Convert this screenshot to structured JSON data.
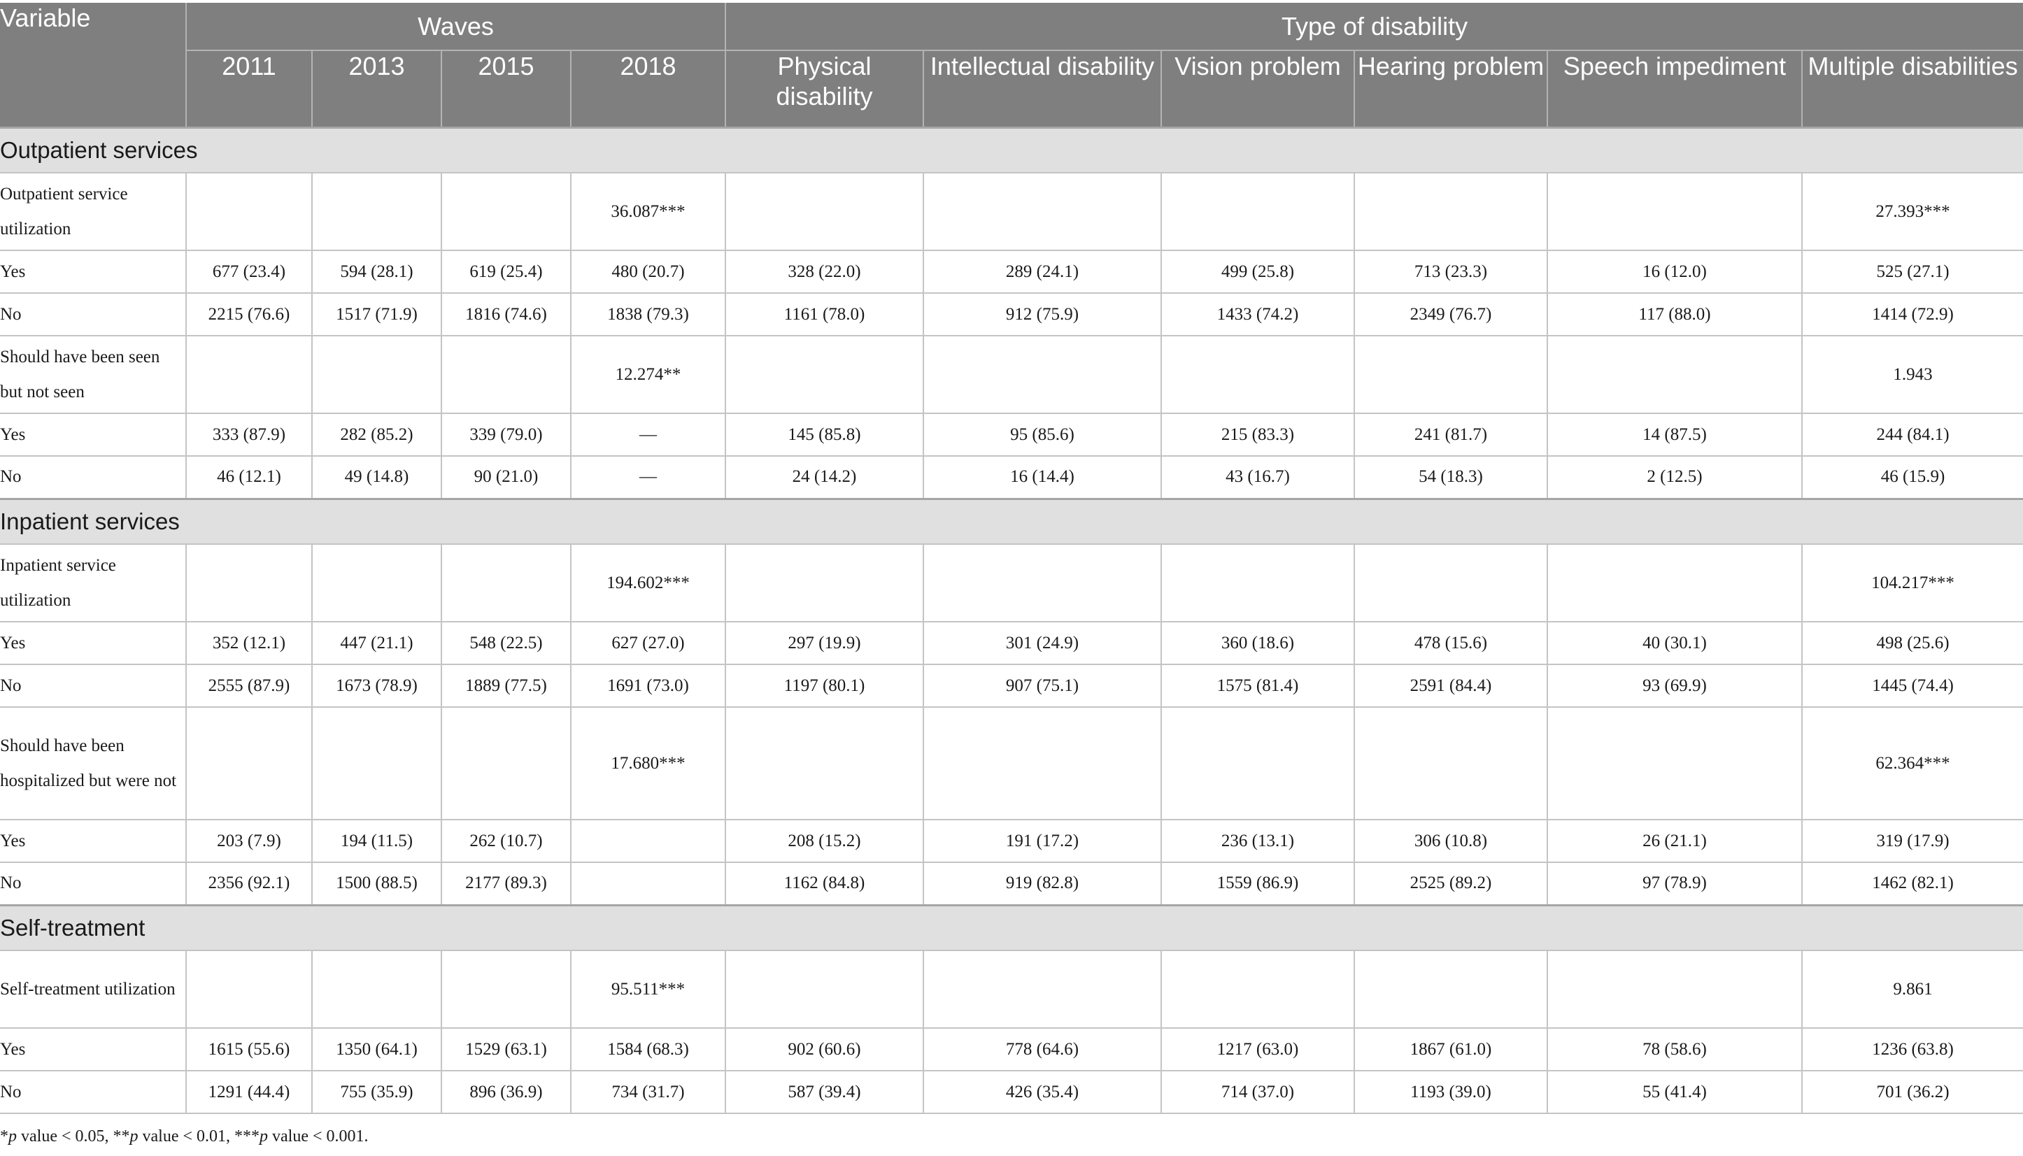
{
  "header": {
    "variable": "Variable",
    "group_waves": "Waves",
    "group_type": "Type of disability",
    "columns": [
      "2011",
      "2013",
      "2015",
      "2018",
      "Physical disability",
      "Intellectual disability",
      "Vision problem",
      "Hearing problem",
      "Speech impediment",
      "Multiple disabilities"
    ]
  },
  "sections": [
    {
      "title": "Outpatient services",
      "rows": [
        {
          "label": "Outpatient service utilization",
          "cells": [
            "",
            "",
            "",
            "36.087***",
            "",
            "",
            "",
            "",
            "",
            "27.393***"
          ]
        },
        {
          "label": "Yes",
          "cells": [
            "677 (23.4)",
            "594 (28.1)",
            "619 (25.4)",
            "480 (20.7)",
            "328 (22.0)",
            "289 (24.1)",
            "499 (25.8)",
            "713 (23.3)",
            "16 (12.0)",
            "525 (27.1)"
          ]
        },
        {
          "label": "No",
          "cells": [
            "2215 (76.6)",
            "1517 (71.9)",
            "1816 (74.6)",
            "1838 (79.3)",
            "1161 (78.0)",
            "912 (75.9)",
            "1433 (74.2)",
            "2349 (76.7)",
            "117 (88.0)",
            "1414 (72.9)"
          ]
        },
        {
          "label": "Should have been seen but not seen",
          "cells": [
            "",
            "",
            "",
            "12.274**",
            "",
            "",
            "",
            "",
            "",
            "1.943"
          ]
        },
        {
          "label": "Yes",
          "cells": [
            "333 (87.9)",
            "282 (85.2)",
            "339 (79.0)",
            "—",
            "145 (85.8)",
            "95 (85.6)",
            "215 (83.3)",
            "241 (81.7)",
            "14 (87.5)",
            "244 (84.1)"
          ]
        },
        {
          "label": "No",
          "cells": [
            "46 (12.1)",
            "49 (14.8)",
            "90 (21.0)",
            "—",
            "24 (14.2)",
            "16 (14.4)",
            "43 (16.7)",
            "54 (18.3)",
            "2 (12.5)",
            "46 (15.9)"
          ]
        }
      ]
    },
    {
      "title": "Inpatient services",
      "rows": [
        {
          "label": "Inpatient service utilization",
          "cells": [
            "",
            "",
            "",
            "194.602***",
            "",
            "",
            "",
            "",
            "",
            "104.217***"
          ]
        },
        {
          "label": "Yes",
          "cells": [
            "352 (12.1)",
            "447 (21.1)",
            "548 (22.5)",
            "627 (27.0)",
            "297 (19.9)",
            "301 (24.9)",
            "360 (18.6)",
            "478 (15.6)",
            "40 (30.1)",
            "498 (25.6)"
          ]
        },
        {
          "label": "No",
          "cells": [
            "2555 (87.9)",
            "1673 (78.9)",
            "1889 (77.5)",
            "1691 (73.0)",
            "1197 (80.1)",
            "907 (75.1)",
            "1575 (81.4)",
            "2591 (84.4)",
            "93 (69.9)",
            "1445 (74.4)"
          ]
        },
        {
          "label": "Should have been hospitalized but were not",
          "cells": [
            "",
            "",
            "",
            "17.680***",
            "",
            "",
            "",
            "",
            "",
            "62.364***"
          ]
        },
        {
          "label": "Yes",
          "cells": [
            "203 (7.9)",
            "194 (11.5)",
            "262 (10.7)",
            "",
            "208 (15.2)",
            "191 (17.2)",
            "236 (13.1)",
            "306 (10.8)",
            "26 (21.1)",
            "319 (17.9)"
          ]
        },
        {
          "label": "No",
          "cells": [
            "2356 (92.1)",
            "1500 (88.5)",
            "2177 (89.3)",
            "",
            "1162 (84.8)",
            "919 (82.8)",
            "1559 (86.9)",
            "2525 (89.2)",
            "97 (78.9)",
            "1462 (82.1)"
          ]
        }
      ]
    },
    {
      "title": "Self-treatment",
      "rows": [
        {
          "label": "Self-treatment utilization",
          "cells": [
            "",
            "",
            "",
            "95.511***",
            "",
            "",
            "",
            "",
            "",
            "9.861"
          ]
        },
        {
          "label": "Yes",
          "cells": [
            "1615 (55.6)",
            "1350 (64.1)",
            "1529 (63.1)",
            "1584 (68.3)",
            "902 (60.6)",
            "778 (64.6)",
            "1217 (63.0)",
            "1867 (61.0)",
            "78 (58.6)",
            "1236 (63.8)"
          ]
        },
        {
          "label": "No",
          "cells": [
            "1291 (44.4)",
            "755 (35.9)",
            "896 (36.9)",
            "734 (31.7)",
            "587 (39.4)",
            "426 (35.4)",
            "714 (37.0)",
            "1193 (39.0)",
            "55 (41.4)",
            "701 (36.2)"
          ]
        }
      ]
    }
  ],
  "footnote": {
    "p1": "p",
    "t1": " value < 0.05, ",
    "m2": "**",
    "p2": "p",
    "t2": " value < 0.01, ",
    "m3": "***",
    "p3": "p",
    "t3": " value < 0.001.",
    "m1": "*"
  }
}
